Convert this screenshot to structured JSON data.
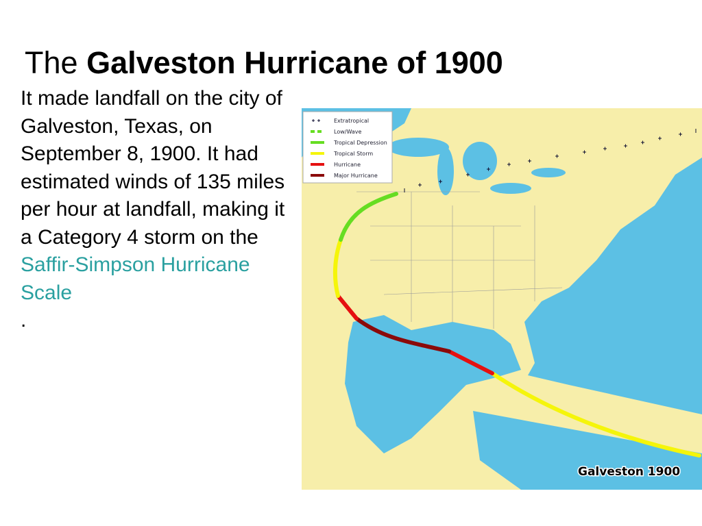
{
  "title": {
    "prefix": "The",
    "emphasis": "Galveston Hurricane of 1900"
  },
  "body": {
    "text": "It made landfall on the city of Galveston, Texas, on September 8, 1900. It had estimated winds of 135 miles per hour  at landfall, making it a Category 4 storm on the ",
    "link": "Saffir-Simpson Hurricane Scale",
    "end": "."
  },
  "map": {
    "legend": [
      "Extratropical",
      "Low/Wave",
      "Tropical Depression",
      "Tropical Storm",
      "Hurricane",
      "Major Hurricane"
    ],
    "caption": "Galveston 1900"
  }
}
